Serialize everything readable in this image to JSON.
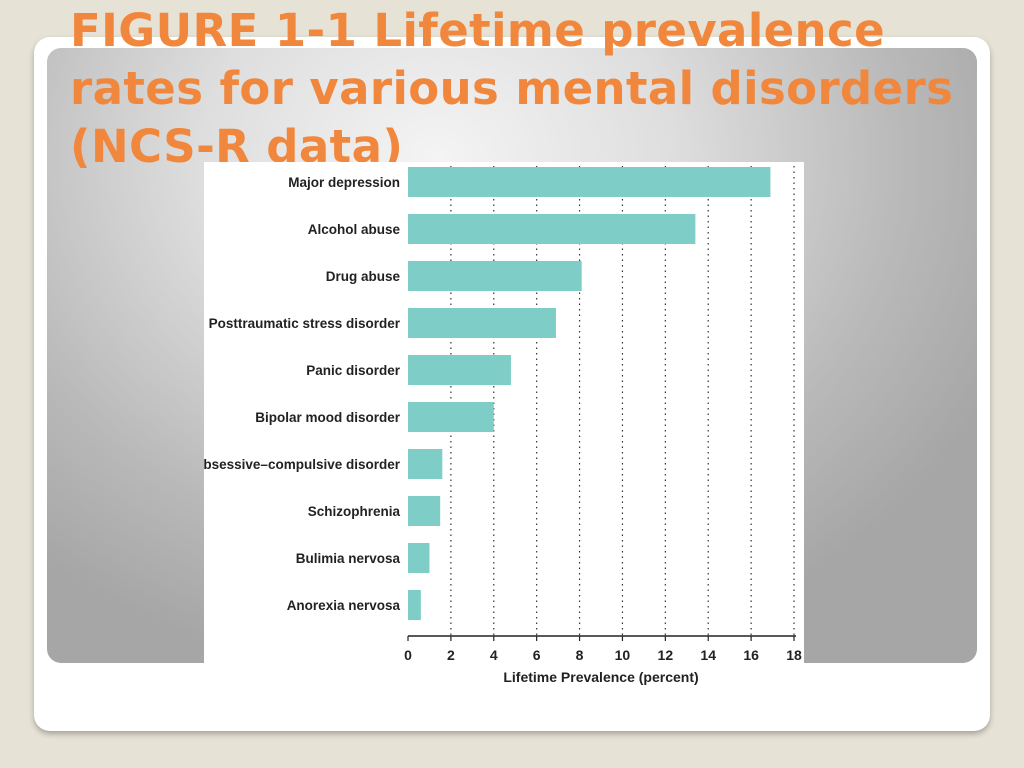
{
  "slide": {
    "title": "FIGURE 1-1  Lifetime prevalence\nrates for various mental disorders\n(NCS-R data)"
  },
  "colors": {
    "bar": "#7ecdc7",
    "title": "#f0873c"
  },
  "chart_data": {
    "type": "bar",
    "orientation": "horizontal",
    "categories": [
      "Major depression",
      "Alcohol abuse",
      "Drug abuse",
      "Posttraumatic stress disorder",
      "Panic disorder",
      "Bipolar mood disorder",
      "Obsessive–compulsive disorder",
      "Schizophrenia",
      "Bulimia nervosa",
      "Anorexia nervosa"
    ],
    "values": [
      16.9,
      13.4,
      8.1,
      6.9,
      4.8,
      4.0,
      1.6,
      1.5,
      1.0,
      0.6
    ],
    "xlabel": "Lifetime Prevalence (percent)",
    "xticks": [
      0,
      2,
      4,
      6,
      8,
      10,
      12,
      14,
      16,
      18
    ],
    "xlim": [
      0,
      18
    ],
    "grid": "vertical dotted"
  }
}
